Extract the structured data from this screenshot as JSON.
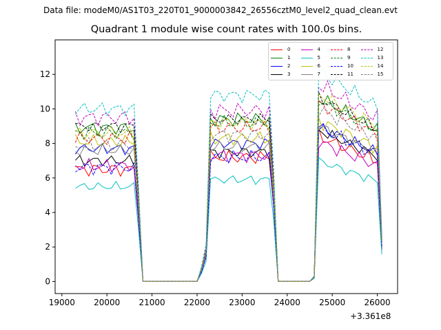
{
  "suptitle": "Data file: modeM0/AS1T03_220T01_9000003842_26556cztM0_level2_quad_clean.evt",
  "chart_data": {
    "type": "line",
    "title": "Quadrant 1 module wise count rates with 100.0s bins.",
    "xlabel": "",
    "ylabel": "",
    "x_offset_label": "+3.361e8",
    "xlim": [
      18850,
      26450
    ],
    "ylim": [
      -0.7,
      14.0
    ],
    "xticks": [
      19000,
      20000,
      21000,
      22000,
      23000,
      24000,
      25000,
      26000
    ],
    "yticks": [
      0,
      2,
      4,
      6,
      8,
      10,
      12
    ],
    "segments": [
      {
        "start": 19300,
        "step": 100,
        "count": 14
      },
      {
        "start": 22300,
        "step": 100,
        "count": 14
      },
      {
        "start": 24700,
        "step": 100,
        "count": 14
      }
    ],
    "gap_times": [
      20800,
      20900,
      21000,
      21100,
      21200,
      21300,
      21400,
      21500,
      21600,
      21700,
      21800,
      21900,
      22000,
      23800,
      23900,
      24000,
      24100,
      24200,
      24300,
      24400,
      24500
    ],
    "edges": [
      {
        "x": 20700,
        "frac": 0.55
      },
      {
        "x": 22100,
        "frac": 0.08
      },
      {
        "x": 22200,
        "frac": 0.2
      },
      {
        "x": 23700,
        "frac": 0.6
      },
      {
        "x": 24600,
        "frac": 0.03
      },
      {
        "x": 26100,
        "frac": 0.25
      }
    ],
    "series": [
      {
        "name": "0",
        "color": "#ff0000",
        "dash": "solid",
        "levels": [
          6.5,
          7.2,
          7.6
        ],
        "amp": 0.3
      },
      {
        "name": "1",
        "color": "#008000",
        "dash": "solid",
        "levels": [
          8.9,
          9.4,
          9.6
        ],
        "amp": 0.3
      },
      {
        "name": "2",
        "color": "#0000ff",
        "dash": "solid",
        "levels": [
          7.7,
          8.0,
          8.1
        ],
        "amp": 0.25
      },
      {
        "name": "3",
        "color": "#000000",
        "dash": "solid",
        "levels": [
          7.0,
          7.5,
          7.9
        ],
        "amp": 0.25
      },
      {
        "name": "4",
        "color": "#bf00bf",
        "dash": "solid",
        "levels": [
          6.7,
          7.3,
          7.3
        ],
        "amp": 0.3
      },
      {
        "name": "5",
        "color": "#00bfbf",
        "dash": "solid",
        "levels": [
          5.5,
          5.9,
          6.3
        ],
        "amp": 0.2
      },
      {
        "name": "6",
        "color": "#bfbf00",
        "dash": "solid",
        "levels": [
          8.1,
          8.3,
          8.4
        ],
        "amp": 0.3
      },
      {
        "name": "7",
        "color": "#808080",
        "dash": "solid",
        "levels": [
          7.6,
          7.8,
          8.1
        ],
        "amp": 0.25
      },
      {
        "name": "8",
        "color": "#ff0000",
        "dash": "dashed",
        "levels": [
          8.3,
          8.9,
          9.3
        ],
        "amp": 0.3
      },
      {
        "name": "9",
        "color": "#008000",
        "dash": "dashed",
        "levels": [
          8.6,
          9.2,
          9.5
        ],
        "amp": 0.3
      },
      {
        "name": "10",
        "color": "#0000ff",
        "dash": "dashed",
        "levels": [
          6.6,
          7.2,
          8.0
        ],
        "amp": 0.3
      },
      {
        "name": "11",
        "color": "#000000",
        "dash": "dashed",
        "levels": [
          9.0,
          9.4,
          9.6
        ],
        "amp": 0.25
      },
      {
        "name": "12",
        "color": "#bf00bf",
        "dash": "dashed",
        "levels": [
          9.5,
          9.9,
          10.3
        ],
        "amp": 0.35
      },
      {
        "name": "13",
        "color": "#00bfbf",
        "dash": "dashed",
        "levels": [
          10.0,
          10.8,
          11.0
        ],
        "amp": 0.3
      },
      {
        "name": "14",
        "color": "#bfbf00",
        "dash": "dashed",
        "levels": [
          8.6,
          9.2,
          9.8
        ],
        "amp": 0.3
      },
      {
        "name": "15",
        "color": "#808080",
        "dash": "dashed",
        "levels": [
          7.9,
          8.5,
          9.0
        ],
        "amp": 0.3
      }
    ],
    "legend_position": "top-right"
  }
}
